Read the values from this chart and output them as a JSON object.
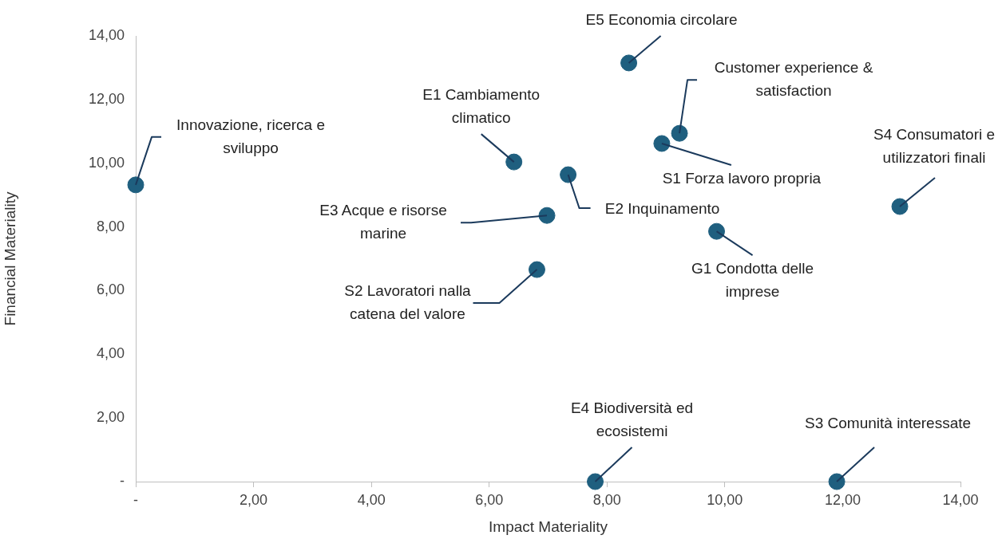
{
  "chart_data": {
    "type": "scatter",
    "xlabel": "Impact Materiality",
    "ylabel": "Financial Materiality",
    "x": [
      0.0,
      8.37,
      9.23,
      8.93,
      6.42,
      7.34,
      12.97,
      6.98,
      9.86,
      6.81,
      7.8,
      11.9
    ],
    "series": [
      {
        "color": "#1f5f7f",
        "values": [
          9.32,
          13.15,
          10.94,
          10.62,
          10.04,
          9.64,
          8.64,
          8.36,
          7.86,
          6.66,
          0,
          0
        ]
      }
    ],
    "xlim": [
      0,
      14
    ],
    "ylim": [
      0,
      14
    ],
    "xticks": [
      {
        "value": 0,
        "label": "-"
      },
      {
        "value": 2,
        "label": "2,00"
      },
      {
        "value": 4,
        "label": "4,00"
      },
      {
        "value": 6,
        "label": "6,00"
      },
      {
        "value": 8,
        "label": "8,00"
      },
      {
        "value": 10,
        "label": "10,00"
      },
      {
        "value": 12,
        "label": "12,00"
      },
      {
        "value": 14,
        "label": "14,00"
      }
    ],
    "yticks": [
      {
        "value": 0,
        "label": "-"
      },
      {
        "value": 2,
        "label": "2,00"
      },
      {
        "value": 4,
        "label": "4,00"
      },
      {
        "value": 6,
        "label": "6,00"
      },
      {
        "value": 8,
        "label": "8,00"
      },
      {
        "value": 10,
        "label": "10,00"
      },
      {
        "value": 12,
        "label": "12,00"
      },
      {
        "value": 14,
        "label": "14,00"
      }
    ],
    "grid": false,
    "legend": false,
    "marker": "circle",
    "annotations": [
      {
        "text": "Innovazione, ricerca e sviluppo",
        "x": 0.0,
        "y": 9.32
      },
      {
        "text": "E5 Economia circolare",
        "x": 8.37,
        "y": 13.15
      },
      {
        "text": "Customer experience & satisfaction",
        "x": 9.23,
        "y": 10.94
      },
      {
        "text": "S1 Forza lavoro propria",
        "x": 8.93,
        "y": 10.62
      },
      {
        "text": "E1 Cambiamento climatico",
        "x": 6.42,
        "y": 10.04
      },
      {
        "text": "E2 Inquinamento",
        "x": 7.34,
        "y": 9.64
      },
      {
        "text": "S4 Consumatori e utilizzatori finali",
        "x": 12.97,
        "y": 8.64
      },
      {
        "text": "E3 Acque e risorse marine",
        "x": 6.98,
        "y": 8.36
      },
      {
        "text": "G1 Condotta delle imprese",
        "x": 9.86,
        "y": 7.86
      },
      {
        "text": "S2 Lavoratori nalla catena del valore",
        "x": 6.81,
        "y": 6.66
      },
      {
        "text": "E4 Biodiversità ed ecosistemi",
        "x": 7.8,
        "y": 0
      },
      {
        "text": "S3 Comunità interessate",
        "x": 11.9,
        "y": 0
      }
    ]
  }
}
